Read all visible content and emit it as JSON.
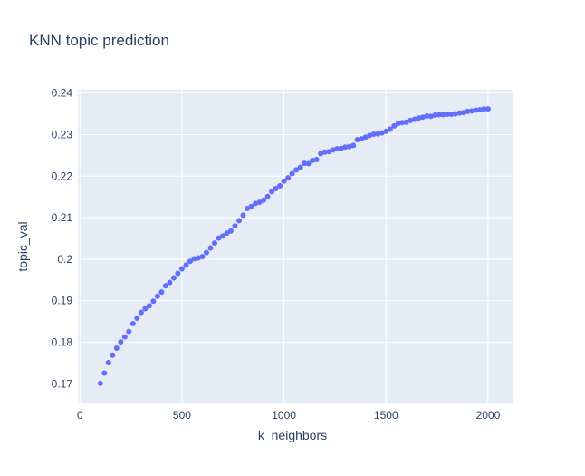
{
  "chart_data": {
    "type": "scatter",
    "title": "KNN topic prediction",
    "xlabel": "k_neighbors",
    "ylabel": "topic_val",
    "xlim": [
      -10,
      2120
    ],
    "ylim": [
      0.1655,
      0.2408
    ],
    "x_ticks": [
      0,
      500,
      1000,
      1500,
      2000
    ],
    "x_tick_labels": [
      "0",
      "500",
      "1000",
      "1500",
      "2000"
    ],
    "y_ticks": [
      0.17,
      0.18,
      0.19,
      0.2,
      0.21,
      0.22,
      0.23,
      0.24
    ],
    "y_tick_labels": [
      "0.17",
      "0.18",
      "0.19",
      "0.2",
      "0.21",
      "0.22",
      "0.23",
      "0.24"
    ],
    "grid": true,
    "colors": {
      "marker": "#636efa",
      "plot_bg": "#e5ecf6",
      "grid": "#ffffff",
      "text": "#2a3f5f"
    },
    "series": [
      {
        "x": [
          100,
          120,
          140,
          160,
          180,
          200,
          220,
          240,
          260,
          280,
          300,
          320,
          340,
          360,
          380,
          400,
          420,
          440,
          460,
          480,
          500,
          520,
          540,
          560,
          580,
          600,
          620,
          640,
          660,
          680,
          700,
          720,
          740,
          760,
          780,
          800,
          820,
          840,
          860,
          880,
          900,
          920,
          940,
          960,
          980,
          1000,
          1020,
          1040,
          1060,
          1080,
          1100,
          1120,
          1140,
          1160,
          1180,
          1200,
          1220,
          1240,
          1260,
          1280,
          1300,
          1320,
          1340,
          1360,
          1380,
          1400,
          1420,
          1440,
          1460,
          1480,
          1500,
          1520,
          1540,
          1560,
          1580,
          1600,
          1620,
          1640,
          1660,
          1680,
          1700,
          1720,
          1740,
          1760,
          1780,
          1800,
          1820,
          1840,
          1860,
          1880,
          1900,
          1920,
          1940,
          1960,
          1980,
          2000
        ],
        "y": [
          0.1701,
          0.1726,
          0.1751,
          0.1769,
          0.1786,
          0.1801,
          0.1813,
          0.1826,
          0.1845,
          0.1858,
          0.1872,
          0.1881,
          0.1888,
          0.1899,
          0.1911,
          0.1921,
          0.1936,
          0.1944,
          0.1955,
          0.1966,
          0.1977,
          0.1986,
          0.1995,
          0.2001,
          0.2003,
          0.2006,
          0.2016,
          0.2027,
          0.2039,
          0.2051,
          0.2056,
          0.2063,
          0.2068,
          0.208,
          0.2093,
          0.2106,
          0.2122,
          0.2127,
          0.2134,
          0.2137,
          0.2142,
          0.2151,
          0.2163,
          0.217,
          0.2177,
          0.2188,
          0.2196,
          0.2206,
          0.2215,
          0.2221,
          0.2231,
          0.223,
          0.2238,
          0.224,
          0.2254,
          0.2258,
          0.2259,
          0.2263,
          0.2266,
          0.2267,
          0.227,
          0.2271,
          0.2274,
          0.2288,
          0.229,
          0.2294,
          0.2298,
          0.2301,
          0.2302,
          0.2304,
          0.2308,
          0.2313,
          0.2321,
          0.2327,
          0.2329,
          0.233,
          0.2334,
          0.2337,
          0.234,
          0.2342,
          0.2345,
          0.2344,
          0.2347,
          0.2348,
          0.2348,
          0.2349,
          0.2349,
          0.235,
          0.2352,
          0.2353,
          0.2356,
          0.2357,
          0.2359,
          0.236,
          0.2362,
          0.2362
        ]
      }
    ]
  }
}
